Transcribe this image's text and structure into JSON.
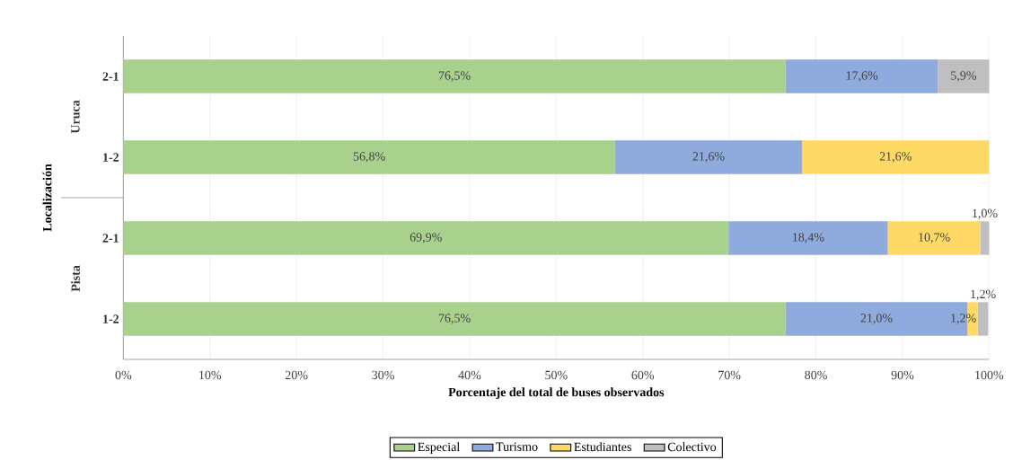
{
  "chart_data": {
    "type": "bar",
    "orientation": "horizontal",
    "stacked": true,
    "xlabel": "Porcentaje del total de buses observados",
    "ylabel": "Localización",
    "categories": [
      "2-1",
      "1-2",
      "2-1",
      "1-2"
    ],
    "annotations": [
      "Uruca",
      "Pista"
    ],
    "series": [
      {
        "name": "Especial",
        "color": "#a9d18e",
        "values": [
          76.5,
          56.8,
          69.9,
          76.5
        ],
        "value_labels": [
          "76,5%",
          "56,8%",
          "69,9%",
          "76,5%"
        ]
      },
      {
        "name": "Turismo",
        "color": "#8faadc",
        "values": [
          17.6,
          21.6,
          18.4,
          21.0
        ],
        "value_labels": [
          "17,6%",
          "21,6%",
          "18,4%",
          "21,0%"
        ]
      },
      {
        "name": "Estudiantes",
        "color": "#ffd966",
        "values": [
          0,
          21.6,
          10.7,
          1.2
        ],
        "value_labels": [
          null,
          "21,6%",
          "10,7%",
          "1,2%"
        ]
      },
      {
        "name": "Colectivo",
        "color": "#bfbfbf",
        "values": [
          5.9,
          0,
          1.0,
          1.2
        ],
        "value_labels": [
          "5,9%",
          null,
          "1,0%",
          "1,2%"
        ]
      }
    ],
    "xlim": [
      0,
      100
    ],
    "xticks": [
      {
        "value": 0,
        "label": "0%"
      },
      {
        "value": 10,
        "label": "10%"
      },
      {
        "value": 20,
        "label": "20%"
      },
      {
        "value": 30,
        "label": "30%"
      },
      {
        "value": 40,
        "label": "40%"
      },
      {
        "value": 50,
        "label": "50%"
      },
      {
        "value": 60,
        "label": "60%"
      },
      {
        "value": 70,
        "label": "70%"
      },
      {
        "value": 80,
        "label": "80%"
      },
      {
        "value": 90,
        "label": "90%"
      },
      {
        "value": 100,
        "label": "100%"
      }
    ],
    "grid": "x",
    "legend": "bottom"
  }
}
